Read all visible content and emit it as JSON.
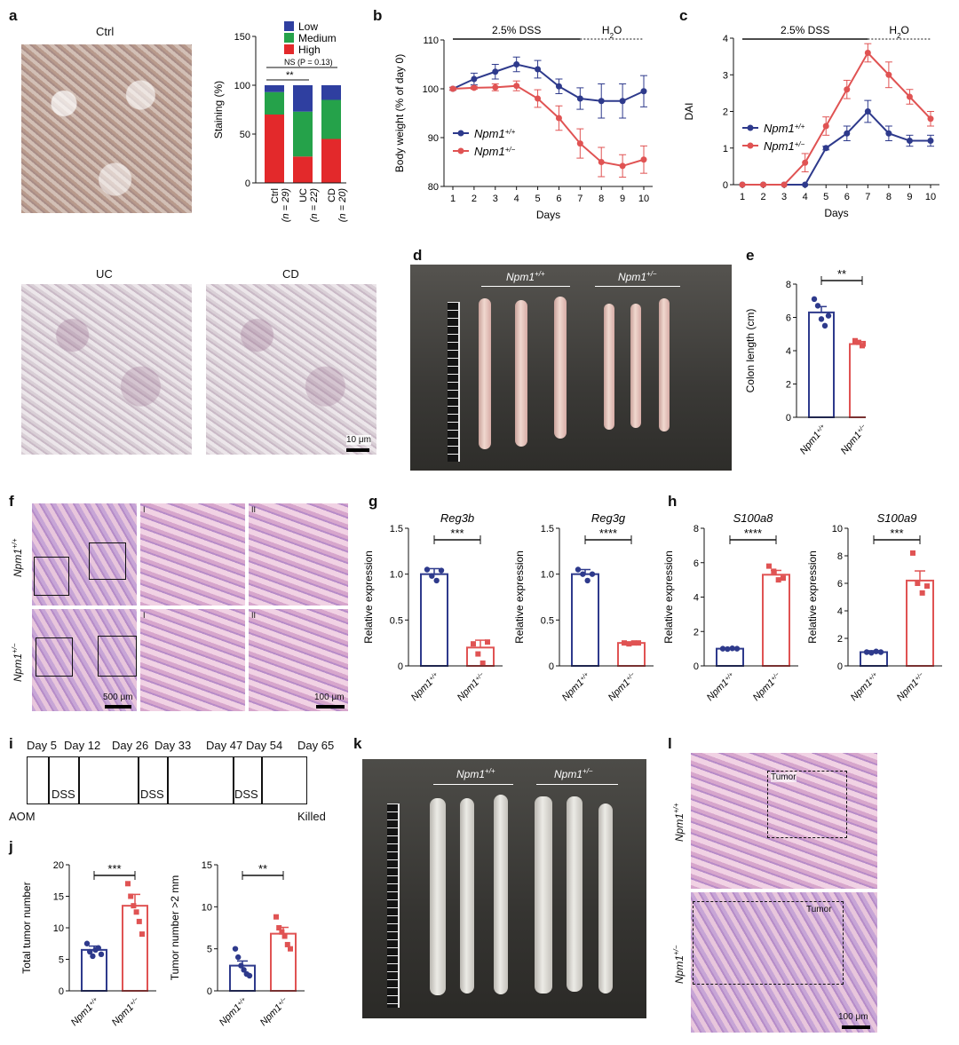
{
  "panel_letters": {
    "a": "a",
    "b": "b",
    "c": "c",
    "d": "d",
    "e": "e",
    "f": "f",
    "g": "g",
    "h": "h",
    "i": "i",
    "j": "j",
    "k": "k",
    "l": "l"
  },
  "panel_a": {
    "image_titles": {
      "ctrl": "Ctrl",
      "uc": "UC",
      "cd": "CD"
    },
    "scale_bar": "10 μm"
  },
  "panel_d": {
    "group1": "Npm1",
    "group1_sup": "+/+",
    "group2": "Npm1",
    "group2_sup": "+/−"
  },
  "panel_f": {
    "row1": "Npm1",
    "row1_sup": "+/+",
    "row2": "Npm1",
    "row2_sup": "+/−",
    "inset1": "I",
    "inset2": "II",
    "scale1": "500 μm",
    "scale2": "100 μm"
  },
  "panel_i": {
    "days": [
      "Day 5",
      "Day 12",
      "Day 26",
      "Day 33",
      "Day 47",
      "Day 54",
      "Day 65"
    ],
    "dss": [
      "DSS",
      "DSS",
      "DSS"
    ],
    "start": "AOM",
    "end": "Killed"
  },
  "panel_k": {
    "group1": "Npm1",
    "group1_sup": "+/+",
    "group2": "Npm1",
    "group2_sup": "+/−"
  },
  "panel_l": {
    "row1": "Npm1",
    "row1_sup": "+/+",
    "row2": "Npm1",
    "row2_sup": "+/−",
    "tumor1": "Tumor",
    "tumor2": "Tumor",
    "scale": "100 μm"
  },
  "colors": {
    "wt": "#2e3a8c",
    "het": "#e05353",
    "low": "#2f3fa0",
    "medium": "#25a24a",
    "high": "#e3292b"
  },
  "chart_data": [
    {
      "id": "a_stacked",
      "type": "bar",
      "categories": [
        "Ctrl (n = 29)",
        "UC (n = 22)",
        "CD (n = 20)"
      ],
      "category_lines": [
        [
          "Ctrl",
          "(n = 29)"
        ],
        [
          "UC",
          "(n = 22)"
        ],
        [
          "CD",
          "(n = 20)"
        ]
      ],
      "series": [
        {
          "name": "Low",
          "values": [
            7,
            27,
            15
          ]
        },
        {
          "name": "Medium",
          "values": [
            23,
            46,
            40
          ]
        },
        {
          "name": "High",
          "values": [
            70,
            27,
            45
          ]
        }
      ],
      "ylabel": "Staining (%)",
      "yticks": [
        "0",
        "50",
        "100",
        "150"
      ],
      "ylim": [
        0,
        150
      ],
      "annotations": [
        "NS (P = 0.13)",
        "**"
      ]
    },
    {
      "id": "b_weight",
      "type": "line",
      "x": [
        1,
        2,
        3,
        4,
        5,
        6,
        7,
        8,
        9,
        10
      ],
      "series": [
        {
          "name": "Npm1+/+",
          "label": "Npm1",
          "sup": "+/+",
          "values": [
            100,
            102,
            103.5,
            105,
            104,
            100.5,
            98,
            97.5,
            97.5,
            99.5
          ],
          "err": [
            0.3,
            1.2,
            1.5,
            1.5,
            1.8,
            1.5,
            2.2,
            3.5,
            3.5,
            3.2
          ]
        },
        {
          "name": "Npm1+/−",
          "label": "Npm1",
          "sup": "+/−",
          "values": [
            100,
            100.2,
            100.3,
            100.6,
            98,
            94,
            88.8,
            85,
            84.2,
            85.5
          ],
          "err": [
            0.3,
            0.3,
            0.7,
            1,
            1.8,
            2.5,
            3,
            3,
            2.3,
            2.8
          ]
        }
      ],
      "xlabel": "Days",
      "ylabel": "Body weight (% of day 0)",
      "yticks": [
        "80",
        "90",
        "100",
        "110"
      ],
      "ylim": [
        80,
        110
      ],
      "xticks": [
        "1",
        "2",
        "3",
        "4",
        "5",
        "6",
        "7",
        "8",
        "9",
        "10"
      ],
      "annotations": [
        "2.5% DSS",
        "H",
        "2",
        "O"
      ]
    },
    {
      "id": "c_dai",
      "type": "line",
      "x": [
        1,
        2,
        3,
        4,
        5,
        6,
        7,
        8,
        9,
        10
      ],
      "series": [
        {
          "name": "Npm1+/+",
          "label": "Npm1",
          "sup": "+/+",
          "values": [
            0,
            0,
            0,
            0,
            1,
            1.4,
            2,
            1.4,
            1.2,
            1.2
          ],
          "err": [
            0,
            0,
            0,
            0,
            0.05,
            0.2,
            0.3,
            0.2,
            0.15,
            0.15
          ]
        },
        {
          "name": "Npm1+/−",
          "label": "Npm1",
          "sup": "+/−",
          "values": [
            0,
            0,
            0,
            0.6,
            1.6,
            2.6,
            3.6,
            3,
            2.4,
            1.8
          ],
          "err": [
            0,
            0,
            0,
            0.25,
            0.25,
            0.25,
            0.25,
            0.35,
            0.2,
            0.2
          ]
        }
      ],
      "xlabel": "Days",
      "ylabel": "DAI",
      "yticks": [
        "0",
        "1",
        "2",
        "3",
        "4"
      ],
      "ylim": [
        0,
        4
      ],
      "xticks": [
        "1",
        "2",
        "3",
        "4",
        "5",
        "6",
        "7",
        "8",
        "9",
        "10"
      ],
      "annotations": [
        "2.5% DSS",
        "H",
        "2",
        "O"
      ]
    },
    {
      "id": "e_colon",
      "type": "bar",
      "categories": [
        "Npm1+/+",
        "Npm1+/−"
      ],
      "category_parts": [
        [
          "Npm1",
          "+/+"
        ],
        [
          "Npm1",
          "+/−"
        ]
      ],
      "values": [
        6.3,
        4.4
      ],
      "err": [
        0.35,
        0.15
      ],
      "points": [
        [
          7.1,
          6.7,
          5.9,
          5.5,
          6.1
        ],
        [
          4.6,
          4.5,
          4.3,
          4.4,
          4.2
        ]
      ],
      "ylabel": "Colon length (cm)",
      "yticks": [
        "0",
        "2",
        "4",
        "6",
        "8"
      ],
      "ylim": [
        0,
        8
      ],
      "annotations": [
        "**"
      ]
    },
    {
      "id": "g_reg3b",
      "type": "bar",
      "categories": [
        "Npm1+/+",
        "Npm1+/−"
      ],
      "category_parts": [
        [
          "Npm1",
          "+/+"
        ],
        [
          "Npm1",
          "+/−"
        ]
      ],
      "values": [
        1.0,
        0.2
      ],
      "err": [
        0.06,
        0.08
      ],
      "points": [
        [
          1.05,
          0.98,
          0.93,
          1.04
        ],
        [
          0.24,
          0.13,
          0.03,
          0.26
        ]
      ],
      "title": "Reg3b",
      "ylabel": "Relative expression",
      "yticks": [
        "0",
        "0.5",
        "1.0",
        "1.5"
      ],
      "ylim": [
        0,
        1.5
      ],
      "annotations": [
        "***"
      ]
    },
    {
      "id": "g_reg3g",
      "type": "bar",
      "categories": [
        "Npm1+/+",
        "Npm1+/−"
      ],
      "category_parts": [
        [
          "Npm1",
          "+/+"
        ],
        [
          "Npm1",
          "+/−"
        ]
      ],
      "values": [
        1.0,
        0.25
      ],
      "err": [
        0.05,
        0.01
      ],
      "points": [
        [
          1.05,
          1.0,
          0.93,
          1.0
        ],
        [
          0.25,
          0.24,
          0.25,
          0.25
        ]
      ],
      "title": "Reg3g",
      "ylabel": "Relative expression",
      "yticks": [
        "0",
        "0.5",
        "1.0",
        "1.5"
      ],
      "ylim": [
        0,
        1.5
      ],
      "annotations": [
        "****"
      ]
    },
    {
      "id": "h_s100a8",
      "type": "bar",
      "categories": [
        "Npm1+/+",
        "Npm1+/−"
      ],
      "category_parts": [
        [
          "Npm1",
          "+/+"
        ],
        [
          "Npm1",
          "+/−"
        ]
      ],
      "values": [
        1.0,
        5.3
      ],
      "err": [
        0.05,
        0.25
      ],
      "points": [
        [
          1.0,
          0.98,
          1.02,
          1.0
        ],
        [
          5.8,
          5.5,
          5.0,
          5.1
        ]
      ],
      "title": "S100a8",
      "ylabel": "Relative expression",
      "yticks": [
        "0",
        "2",
        "4",
        "6",
        "8"
      ],
      "ylim": [
        0,
        8
      ],
      "annotations": [
        "****"
      ]
    },
    {
      "id": "h_s100a9",
      "type": "bar",
      "categories": [
        "Npm1+/+",
        "Npm1+/−"
      ],
      "category_parts": [
        [
          "Npm1",
          "+/+"
        ],
        [
          "Npm1",
          "+/−"
        ]
      ],
      "values": [
        1.0,
        6.2
      ],
      "err": [
        0.1,
        0.7
      ],
      "points": [
        [
          1.0,
          0.95,
          1.05,
          1.0
        ],
        [
          8.2,
          6.0,
          5.3,
          5.8
        ]
      ],
      "title": "S100a9",
      "ylabel": "Relative expression",
      "yticks": [
        "0",
        "2",
        "4",
        "6",
        "8",
        "10"
      ],
      "ylim": [
        0,
        10
      ],
      "annotations": [
        "***"
      ]
    },
    {
      "id": "j_total",
      "type": "bar",
      "categories": [
        "Npm1+/+",
        "Npm1+/−"
      ],
      "category_parts": [
        [
          "Npm1",
          "+/+"
        ],
        [
          "Npm1",
          "+/−"
        ]
      ],
      "values": [
        6.5,
        13.5
      ],
      "err": [
        0.6,
        1.8
      ],
      "points": [
        [
          7.5,
          6.2,
          5.5,
          6.5,
          6.8,
          5.8
        ],
        [
          17,
          15,
          13.5,
          12.5,
          11,
          9
        ]
      ],
      "ylabel": "Total tumor number",
      "yticks": [
        "0",
        "5",
        "10",
        "15",
        "20"
      ],
      "ylim": [
        0,
        20
      ],
      "annotations": [
        "***"
      ]
    },
    {
      "id": "j_gt2",
      "type": "bar",
      "categories": [
        "Npm1+/+",
        "Npm1+/−"
      ],
      "category_parts": [
        [
          "Npm1",
          "+/+"
        ],
        [
          "Npm1",
          "+/−"
        ]
      ],
      "values": [
        3.0,
        6.8
      ],
      "err": [
        0.55,
        0.75
      ],
      "points": [
        [
          5.0,
          4.0,
          3.0,
          2.5,
          2.0,
          1.8
        ],
        [
          8.8,
          7.5,
          7.0,
          6.5,
          5.5,
          5.0
        ]
      ],
      "ylabel": "Tumor number >2 mm",
      "yticks": [
        "0",
        "5",
        "10",
        "15"
      ],
      "ylim": [
        0,
        15
      ],
      "annotations": [
        "**"
      ]
    }
  ]
}
